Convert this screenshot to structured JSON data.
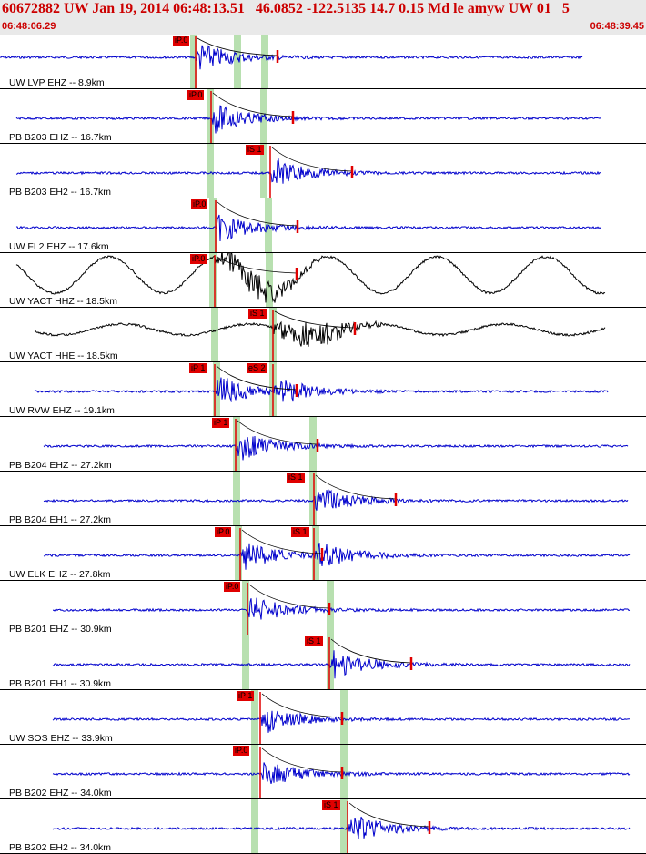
{
  "header": {
    "title": "60672882 UW Jan 19, 2014 06:48:13.51   46.0852 -122.5135 14.7 0.15 Md le amyw UW 01   5",
    "time_start": "06:48:06.29",
    "time_end": "06:48:39.45"
  },
  "colors": {
    "trace_blue": "#0000cc",
    "trace_black": "#000000",
    "pick_red": "#e00000",
    "window_green": "#b8e0b0",
    "header_bg": "#e9e9e9",
    "header_text": "#cc0000"
  },
  "traces": [
    {
      "label": "UW LVP EHZ -- 8.9km",
      "color": "blue",
      "picks": [
        {
          "text": "iP.0"
        }
      ]
    },
    {
      "label": "PB B203 EHZ -- 16.7km",
      "color": "blue",
      "picks": [
        {
          "text": "iP.0"
        }
      ]
    },
    {
      "label": "PB B203 EH2 -- 16.7km",
      "color": "blue",
      "picks": [
        {
          "text": "iS 1"
        }
      ]
    },
    {
      "label": "UW FL2 EHZ -- 17.6km",
      "color": "blue",
      "picks": [
        {
          "text": "iP.0"
        }
      ]
    },
    {
      "label": "UW YACT HHZ -- 18.5km",
      "color": "black",
      "picks": [
        {
          "text": "iP.0"
        }
      ]
    },
    {
      "label": "UW YACT HHE -- 18.5km",
      "color": "black",
      "picks": [
        {
          "text": "iS 1"
        }
      ]
    },
    {
      "label": "UW RVW EHZ -- 19.1km",
      "color": "blue",
      "picks": [
        {
          "text": "iP 1"
        },
        {
          "text": "eS 2"
        }
      ]
    },
    {
      "label": "PB B204 EHZ -- 27.2km",
      "color": "blue",
      "picks": [
        {
          "text": "iP 1"
        }
      ]
    },
    {
      "label": "PB B204 EH1 -- 27.2km",
      "color": "blue",
      "picks": [
        {
          "text": "iS 1"
        }
      ]
    },
    {
      "label": "UW ELK EHZ -- 27.8km",
      "color": "blue",
      "picks": [
        {
          "text": "iP.0"
        },
        {
          "text": "iS 1"
        }
      ]
    },
    {
      "label": "PB B201 EHZ -- 30.9km",
      "color": "blue",
      "picks": [
        {
          "text": "iP.0"
        }
      ]
    },
    {
      "label": "PB B201 EH1 -- 30.9km",
      "color": "blue",
      "picks": [
        {
          "text": "iS 1"
        }
      ]
    },
    {
      "label": "UW SOS EHZ -- 33.9km",
      "color": "blue",
      "picks": [
        {
          "text": "iP 1"
        }
      ]
    },
    {
      "label": "PB B202 EHZ -- 34.0km",
      "color": "blue",
      "picks": [
        {
          "text": "iP.0"
        }
      ]
    },
    {
      "label": "PB B202 EH2 -- 34.0km",
      "color": "blue",
      "picks": [
        {
          "text": "iS 1"
        }
      ]
    }
  ]
}
